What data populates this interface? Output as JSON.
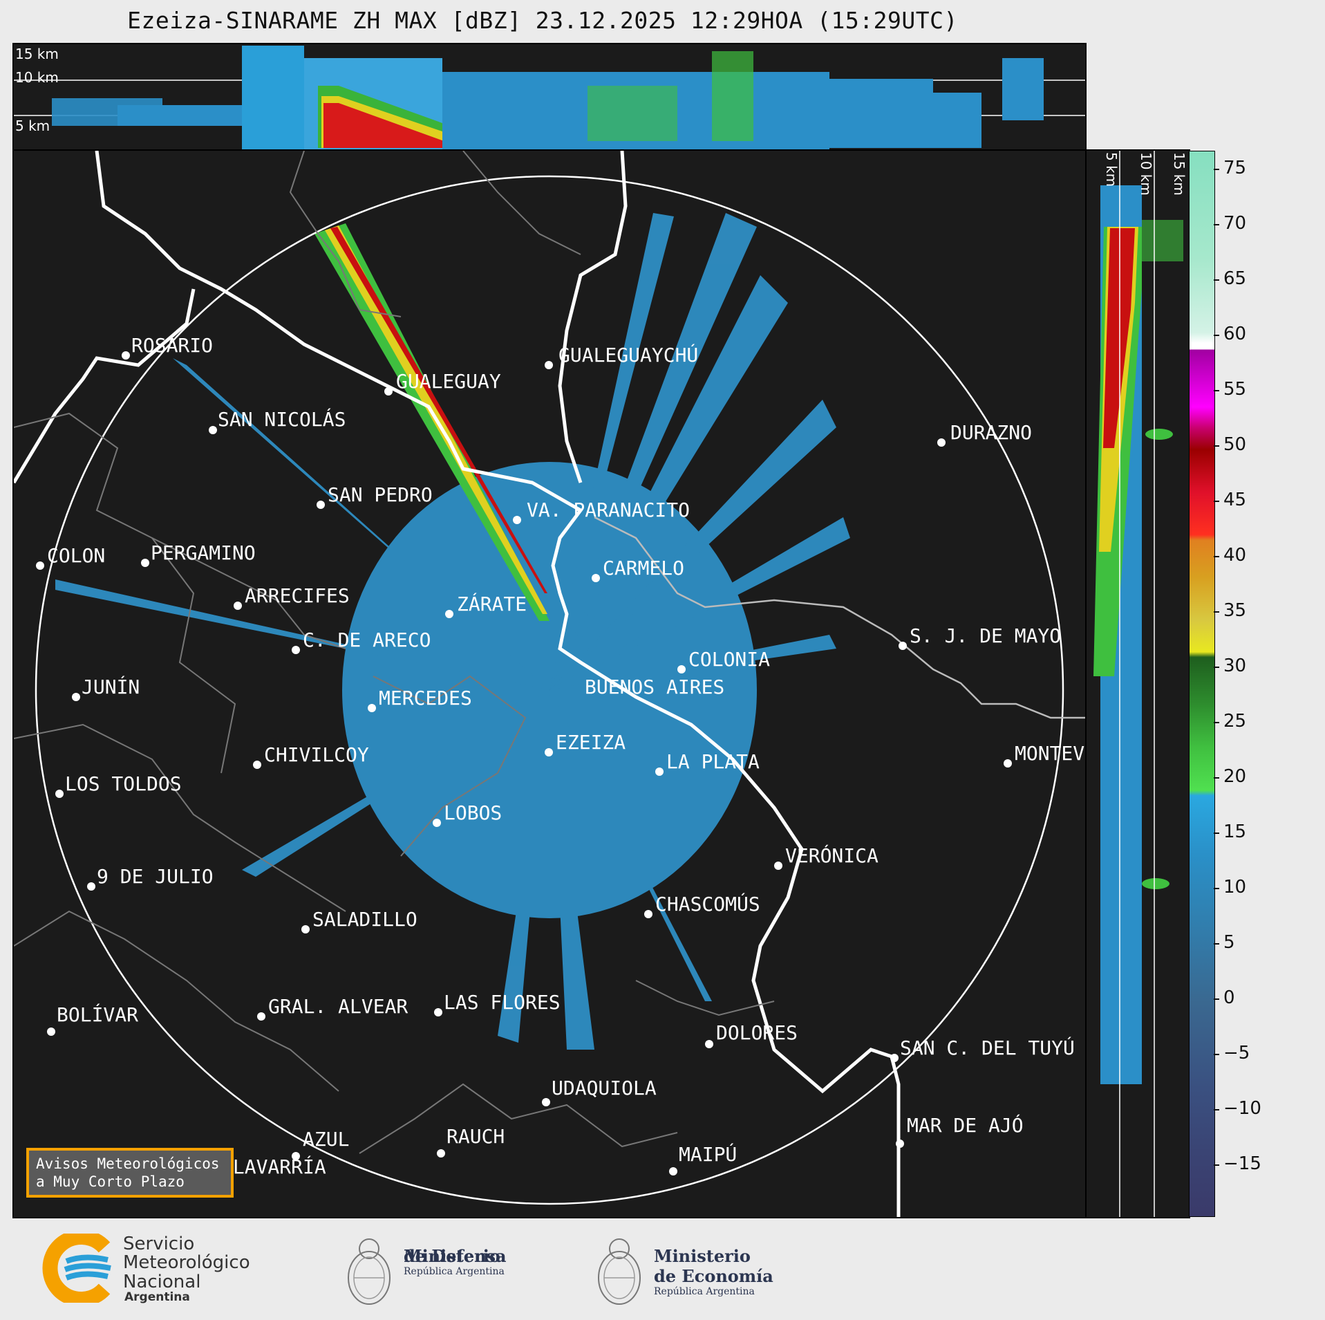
{
  "title": "Ezeiza-SINARAME ZH MAX [dBZ] 23.12.2025 12:29HOA (15:29UTC)",
  "top_panel": {
    "altitudes": [
      "15 km",
      "10 km",
      "5 km"
    ]
  },
  "side_panel": {
    "altitudes": [
      "5 km",
      "10 km",
      "15 km"
    ]
  },
  "colorbar": {
    "unit": "dBZ",
    "ticks": [
      "75",
      "70",
      "65",
      "60",
      "55",
      "50",
      "45",
      "40",
      "35",
      "30",
      "25",
      "20",
      "15",
      "10",
      "5",
      "0",
      "−5",
      "−10",
      "−15"
    ]
  },
  "cities": [
    {
      "name": "ROSARIO"
    },
    {
      "name": "GUALEGUAYCHÚ"
    },
    {
      "name": "GUALEGUAY"
    },
    {
      "name": "SAN NICOLÁS"
    },
    {
      "name": "DURAZNO"
    },
    {
      "name": "SAN PEDRO"
    },
    {
      "name": "VA. PARANACITO"
    },
    {
      "name": "COLON"
    },
    {
      "name": "PERGAMINO"
    },
    {
      "name": "CARMELO"
    },
    {
      "name": "ARRECIFES"
    },
    {
      "name": "ZÁRATE"
    },
    {
      "name": "S. J. DE MAYO"
    },
    {
      "name": "C. DE ARECO"
    },
    {
      "name": "COLONIA"
    },
    {
      "name": "JUNÍN"
    },
    {
      "name": "BUENOS AIRES"
    },
    {
      "name": "MERCEDES"
    },
    {
      "name": "EZEIZA"
    },
    {
      "name": "MONTEV"
    },
    {
      "name": "CHIVILCOY"
    },
    {
      "name": "LA PLATA"
    },
    {
      "name": "LOS TOLDOS"
    },
    {
      "name": "LOBOS"
    },
    {
      "name": "VERÓNICA"
    },
    {
      "name": "9 DE JULIO"
    },
    {
      "name": "CHASCOMÚS"
    },
    {
      "name": "SALADILLO"
    },
    {
      "name": "GRAL. ALVEAR"
    },
    {
      "name": "LAS FLORES"
    },
    {
      "name": "BOLÍVAR"
    },
    {
      "name": "DOLORES"
    },
    {
      "name": "SAN C. DEL TUYÚ"
    },
    {
      "name": "UDAQUIOLA"
    },
    {
      "name": "MAR DE AJÓ"
    },
    {
      "name": "AZUL"
    },
    {
      "name": "RAUCH"
    },
    {
      "name": "MAIPÚ"
    },
    {
      "name": "OLAVARRÍA"
    }
  ],
  "avisos": {
    "line1": "Avisos Meteorológicos",
    "line2": "a Muy Corto Plazo"
  },
  "footer": {
    "smn": {
      "line1": "Servicio",
      "line2": "Meteorológico",
      "line3": "Nacional",
      "line4": "Argentina"
    },
    "defensa": {
      "line1": "Ministerio",
      "line2": "de Defensa",
      "line3": "República Argentina"
    },
    "economia": {
      "line1": "Ministerio",
      "line2": "de Economía",
      "line3": "República Argentina"
    }
  },
  "colors": {
    "background": "#1b1b1b",
    "smn_blue": "#2a9fd8",
    "smn_orange": "#f5a100",
    "frame": "#ebebeb"
  }
}
